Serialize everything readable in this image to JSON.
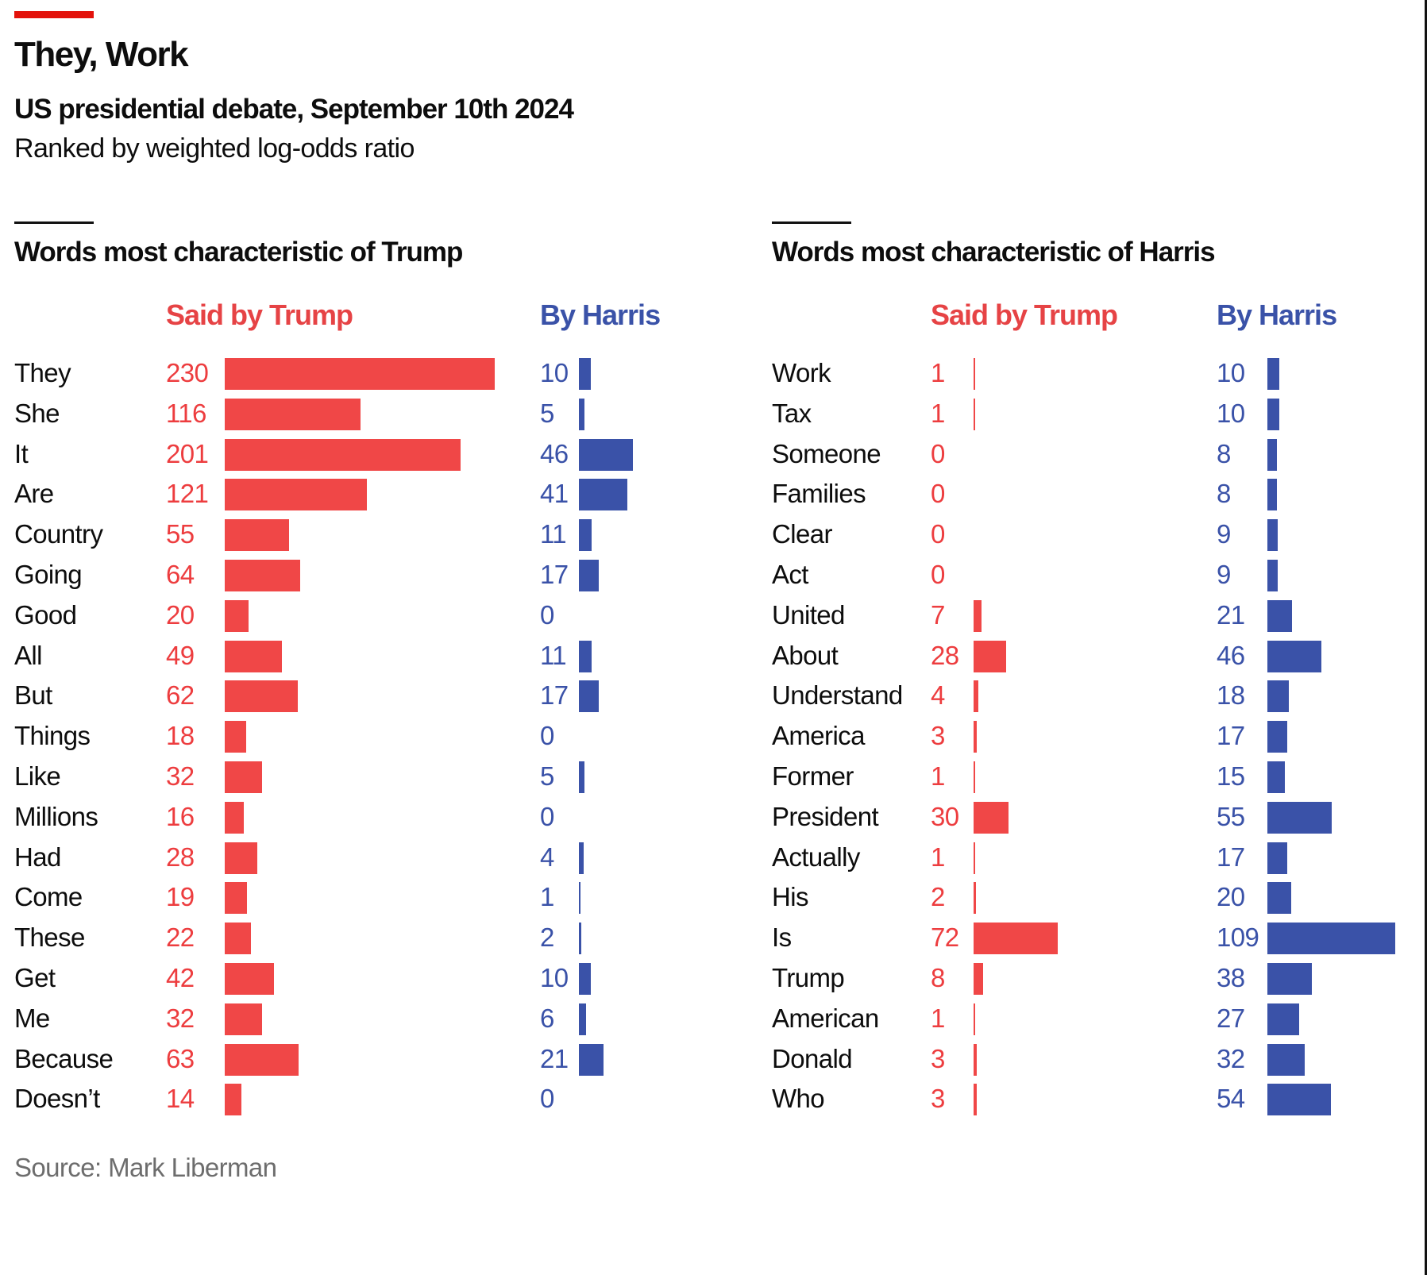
{
  "header": {
    "title": "They, Work",
    "subtitle": "US presidential debate, September 10th 2024",
    "description": "Ranked by weighted log-odds ratio"
  },
  "colors": {
    "accent": "#e3120b",
    "trump": "#f04747",
    "harris": "#3a52a8"
  },
  "footer": {
    "source": "Source: Mark Liberman"
  },
  "chart_data": [
    {
      "type": "bar",
      "title": "Words most characteristic of Trump",
      "orientation": "horizontal",
      "series_labels": {
        "trump": "Said by Trump",
        "harris": "By Harris"
      },
      "categories": [
        "They",
        "She",
        "It",
        "Are",
        "Country",
        "Going",
        "Good",
        "All",
        "But",
        "Things",
        "Like",
        "Millions",
        "Had",
        "Come",
        "These",
        "Get",
        "Me",
        "Because",
        "Doesn’t"
      ],
      "series": [
        {
          "name": "Said by Trump",
          "values": [
            230,
            116,
            201,
            121,
            55,
            64,
            20,
            49,
            62,
            18,
            32,
            16,
            28,
            19,
            22,
            42,
            32,
            63,
            14
          ]
        },
        {
          "name": "By Harris",
          "values": [
            10,
            5,
            46,
            41,
            11,
            17,
            0,
            11,
            17,
            0,
            5,
            0,
            4,
            1,
            2,
            10,
            6,
            21,
            0
          ]
        }
      ],
      "xlabel": "",
      "ylabel": "",
      "grid": false
    },
    {
      "type": "bar",
      "title": "Words most characteristic of Harris",
      "orientation": "horizontal",
      "series_labels": {
        "trump": "Said by Trump",
        "harris": "By Harris"
      },
      "categories": [
        "Work",
        "Tax",
        "Someone",
        "Families",
        "Clear",
        "Act",
        "United",
        "About",
        "Understand",
        "America",
        "Former",
        "President",
        "Actually",
        "His",
        "Is",
        "Trump",
        "American",
        "Donald",
        "Who"
      ],
      "series": [
        {
          "name": "Said by Trump",
          "values": [
            1,
            1,
            0,
            0,
            0,
            0,
            7,
            28,
            4,
            3,
            1,
            30,
            1,
            2,
            72,
            8,
            1,
            3,
            3
          ]
        },
        {
          "name": "By Harris",
          "values": [
            10,
            10,
            8,
            8,
            9,
            9,
            21,
            46,
            18,
            17,
            15,
            55,
            17,
            20,
            109,
            38,
            27,
            32,
            54
          ]
        }
      ],
      "xlabel": "",
      "ylabel": "",
      "grid": false
    }
  ]
}
